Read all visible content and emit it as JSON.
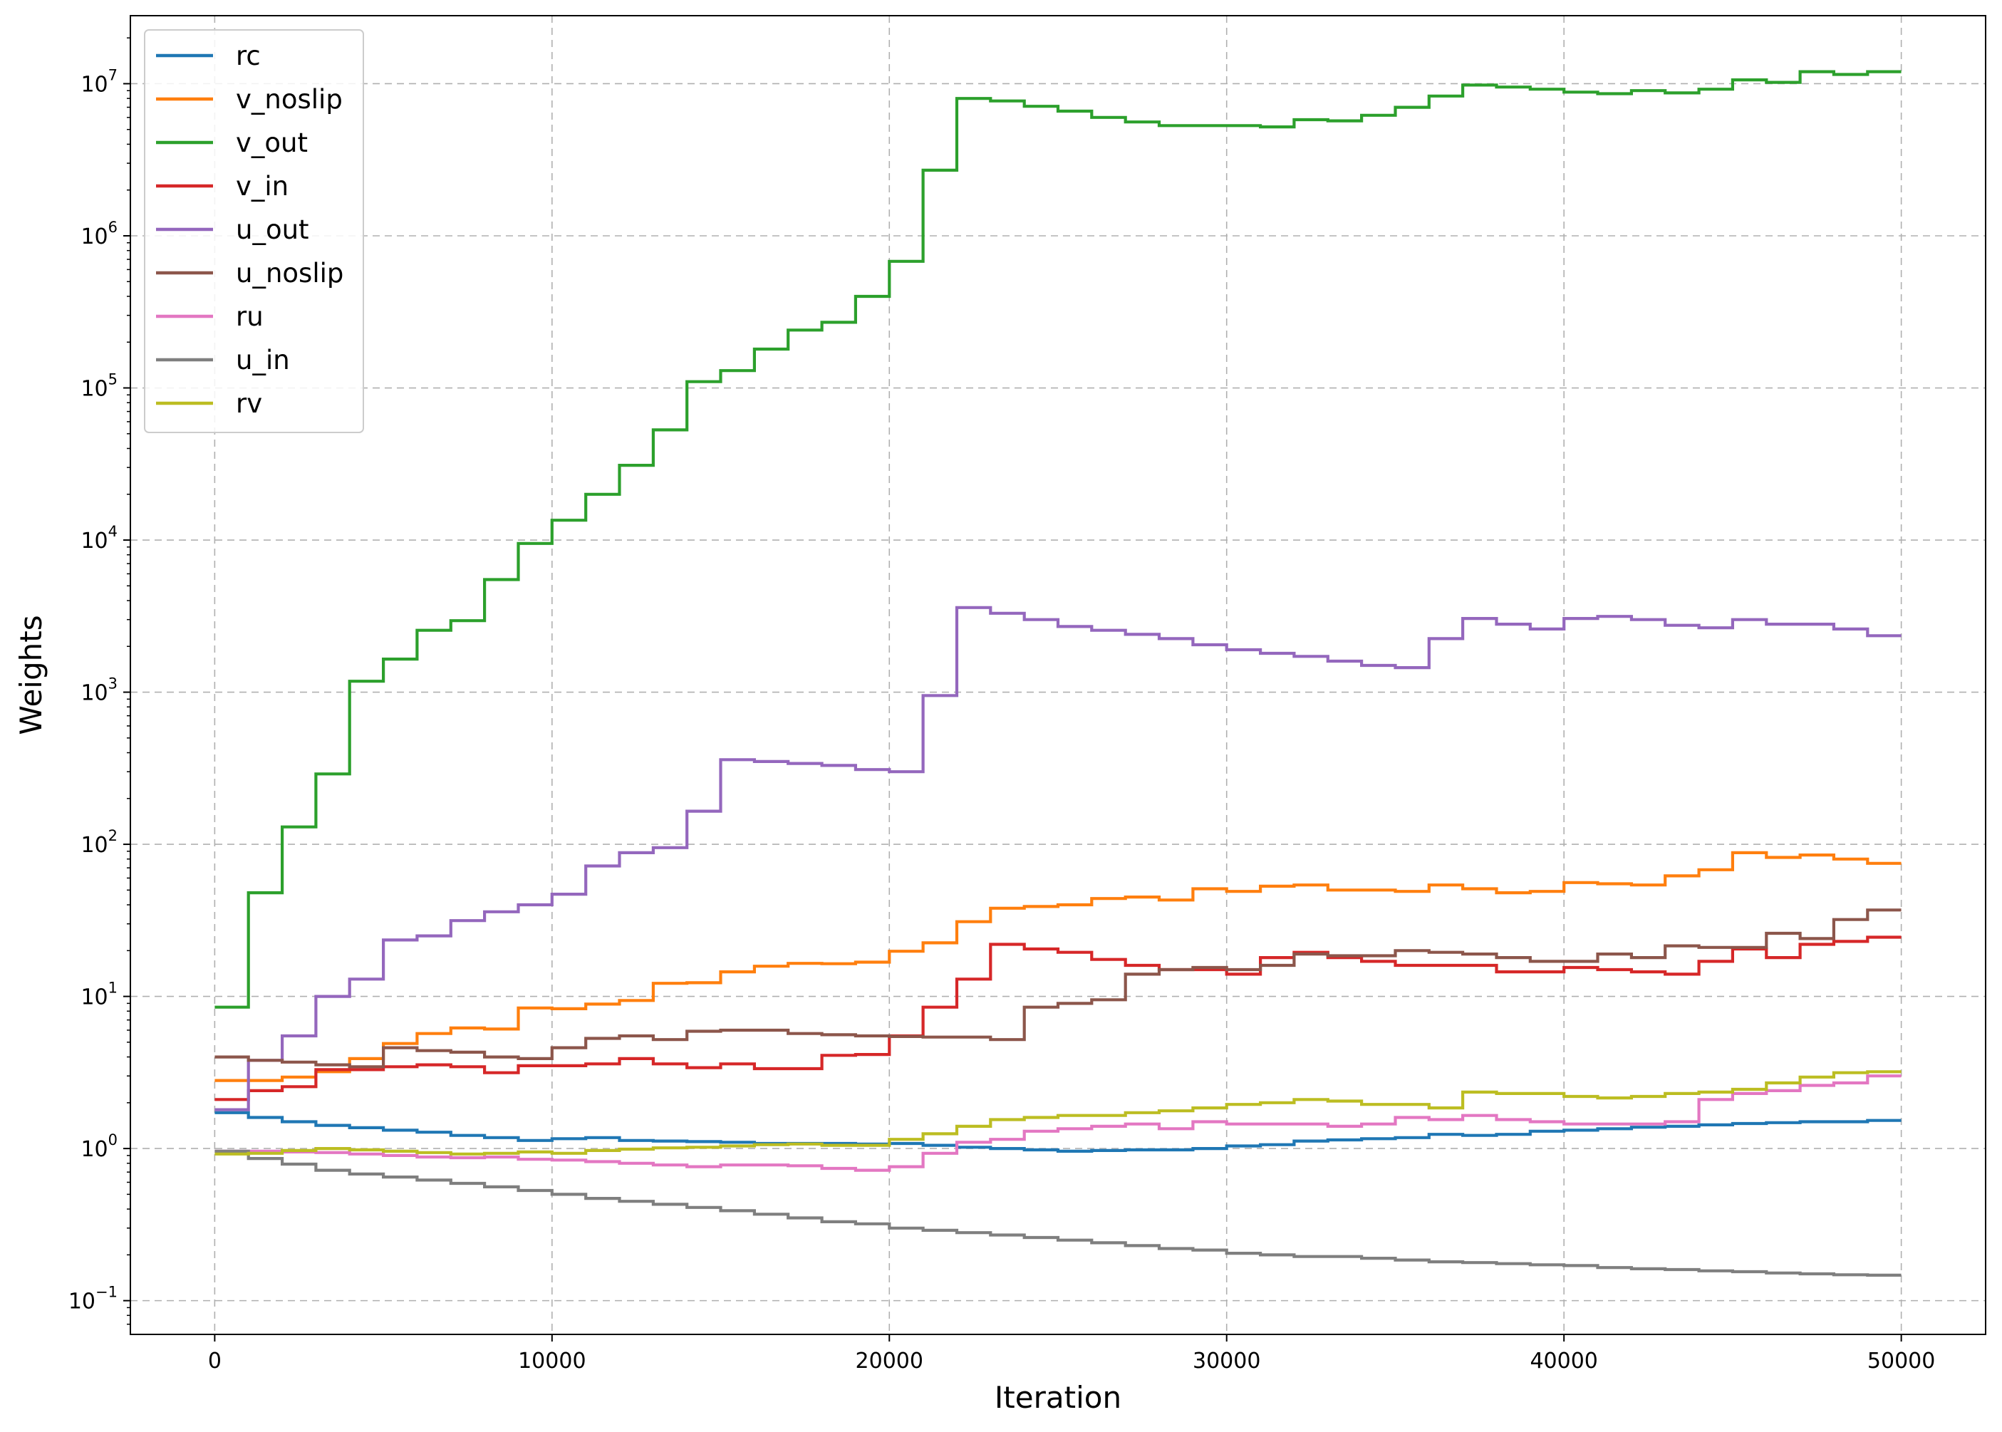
{
  "chart_data": {
    "type": "line",
    "xlabel": "Iteration",
    "ylabel": "Weights",
    "yscale": "log",
    "xlim": [
      -2500,
      52500
    ],
    "ylim": [
      0.06,
      28000000
    ],
    "xticks": [
      {
        "value": 0,
        "label": "0"
      },
      {
        "value": 10000,
        "label": "10000"
      },
      {
        "value": 20000,
        "label": "20000"
      },
      {
        "value": 30000,
        "label": "30000"
      },
      {
        "value": 40000,
        "label": "40000"
      },
      {
        "value": 50000,
        "label": "50000"
      }
    ],
    "yticks": [
      {
        "value": 0.1,
        "base": "10",
        "exp": "−1"
      },
      {
        "value": 1,
        "base": "10",
        "exp": "0"
      },
      {
        "value": 10,
        "base": "10",
        "exp": "1"
      },
      {
        "value": 100,
        "base": "10",
        "exp": "2"
      },
      {
        "value": 1000,
        "base": "10",
        "exp": "3"
      },
      {
        "value": 10000,
        "base": "10",
        "exp": "4"
      },
      {
        "value": 100000,
        "base": "10",
        "exp": "5"
      },
      {
        "value": 1000000,
        "base": "10",
        "exp": "6"
      },
      {
        "value": 10000000,
        "base": "10",
        "exp": "7"
      }
    ],
    "grid": true,
    "legend_position": "upper-left",
    "step_x": [
      0,
      1000,
      2000,
      3000,
      4000,
      5000,
      6000,
      7000,
      8000,
      9000,
      10000,
      11000,
      12000,
      13000,
      14000,
      15000,
      16000,
      17000,
      18000,
      19000,
      20000,
      21000,
      22000,
      23000,
      24000,
      25000,
      26000,
      27000,
      28000,
      29000,
      30000,
      31000,
      32000,
      33000,
      34000,
      35000,
      36000,
      37000,
      38000,
      39000,
      40000,
      41000,
      42000,
      43000,
      44000,
      45000,
      46000,
      47000,
      48000,
      49000,
      50000
    ],
    "series": [
      {
        "name": "rc",
        "color": "#1f77b4",
        "values": [
          1.72,
          1.6,
          1.5,
          1.42,
          1.37,
          1.32,
          1.28,
          1.22,
          1.18,
          1.13,
          1.16,
          1.18,
          1.13,
          1.12,
          1.11,
          1.1,
          1.08,
          1.08,
          1.08,
          1.07,
          1.08,
          1.05,
          1.02,
          1.0,
          0.98,
          0.96,
          0.97,
          0.98,
          0.98,
          1.0,
          1.04,
          1.06,
          1.12,
          1.14,
          1.16,
          1.18,
          1.24,
          1.22,
          1.24,
          1.3,
          1.32,
          1.35,
          1.38,
          1.4,
          1.43,
          1.46,
          1.48,
          1.5,
          1.5,
          1.53,
          1.53
        ]
      },
      {
        "name": "v_noslip",
        "color": "#ff7f0e",
        "values": [
          2.8,
          2.8,
          2.95,
          3.2,
          3.9,
          4.9,
          5.7,
          6.2,
          6.1,
          8.4,
          8.3,
          8.9,
          9.4,
          12.2,
          12.3,
          14.5,
          15.8,
          16.5,
          16.4,
          16.8,
          19.8,
          22.5,
          31,
          38,
          39,
          40,
          44,
          45,
          43,
          51,
          49,
          53,
          54,
          50,
          50,
          49,
          54,
          51,
          48,
          49,
          56,
          55,
          54,
          62,
          68,
          88,
          82,
          85,
          80,
          75,
          75
        ]
      },
      {
        "name": "v_out",
        "color": "#2ca02c",
        "values": [
          8.5,
          48,
          130,
          290,
          1180,
          1650,
          2550,
          2950,
          5500,
          9500,
          13500,
          20000,
          31000,
          53000,
          110000,
          130000,
          180000,
          240000,
          270000,
          400000,
          680000,
          2700000,
          8000000,
          7700000,
          7100000,
          6600000,
          6000000,
          5600000,
          5300000,
          5300000,
          5300000,
          5200000,
          5800000,
          5700000,
          6200000,
          7000000,
          8300000,
          9800000,
          9500000,
          9200000,
          8800000,
          8600000,
          9000000,
          8700000,
          9200000,
          10600000,
          10200000,
          12000000,
          11500000,
          12000000,
          12000000
        ]
      },
      {
        "name": "v_in",
        "color": "#d62728",
        "values": [
          2.1,
          2.4,
          2.55,
          3.3,
          3.3,
          3.45,
          3.55,
          3.45,
          3.15,
          3.5,
          3.5,
          3.6,
          3.9,
          3.6,
          3.4,
          3.6,
          3.35,
          3.35,
          4.1,
          4.15,
          5.5,
          8.5,
          13,
          22,
          20.5,
          19.5,
          17.5,
          16,
          15,
          15,
          14,
          18,
          19.5,
          18,
          17,
          16,
          16,
          16,
          14.5,
          14.5,
          15.5,
          15,
          14.5,
          14,
          17,
          20.5,
          18,
          22,
          23,
          24.5,
          24.5
        ]
      },
      {
        "name": "u_out",
        "color": "#9467bd",
        "values": [
          1.8,
          3.8,
          5.5,
          10,
          13,
          23.5,
          25,
          31.5,
          36,
          40,
          47,
          72,
          88,
          95,
          165,
          360,
          350,
          340,
          330,
          310,
          300,
          950,
          3600,
          3300,
          3000,
          2700,
          2550,
          2400,
          2250,
          2050,
          1900,
          1800,
          1720,
          1600,
          1500,
          1450,
          2250,
          3050,
          2800,
          2600,
          3050,
          3150,
          3000,
          2750,
          2650,
          3000,
          2800,
          2800,
          2600,
          2350,
          2350
        ]
      },
      {
        "name": "u_noslip",
        "color": "#8c564b",
        "values": [
          4.0,
          3.8,
          3.7,
          3.55,
          3.45,
          4.6,
          4.4,
          4.3,
          4.0,
          3.9,
          4.6,
          5.3,
          5.5,
          5.2,
          5.9,
          6.0,
          6.0,
          5.7,
          5.6,
          5.5,
          5.45,
          5.4,
          5.4,
          5.2,
          8.5,
          9.0,
          9.5,
          14,
          15,
          15.5,
          15,
          16,
          19,
          18.5,
          18.5,
          20,
          19.5,
          19,
          18,
          17,
          17,
          19,
          18,
          21.5,
          21,
          21,
          26,
          24,
          32,
          37,
          37
        ]
      },
      {
        "name": "ru",
        "color": "#e377c2",
        "values": [
          0.96,
          0.96,
          0.95,
          0.94,
          0.92,
          0.9,
          0.88,
          0.87,
          0.88,
          0.85,
          0.84,
          0.82,
          0.8,
          0.78,
          0.76,
          0.78,
          0.78,
          0.77,
          0.74,
          0.72,
          0.76,
          0.93,
          1.1,
          1.15,
          1.3,
          1.35,
          1.4,
          1.45,
          1.35,
          1.5,
          1.45,
          1.45,
          1.45,
          1.4,
          1.45,
          1.6,
          1.55,
          1.65,
          1.55,
          1.5,
          1.45,
          1.45,
          1.45,
          1.5,
          2.1,
          2.3,
          2.4,
          2.6,
          2.7,
          3.0,
          3.0
        ]
      },
      {
        "name": "u_in",
        "color": "#7f7f7f",
        "values": [
          0.96,
          0.86,
          0.79,
          0.72,
          0.68,
          0.65,
          0.62,
          0.59,
          0.56,
          0.53,
          0.5,
          0.47,
          0.45,
          0.43,
          0.41,
          0.39,
          0.37,
          0.35,
          0.33,
          0.32,
          0.3,
          0.29,
          0.28,
          0.27,
          0.26,
          0.25,
          0.24,
          0.23,
          0.22,
          0.215,
          0.205,
          0.2,
          0.195,
          0.195,
          0.19,
          0.185,
          0.18,
          0.178,
          0.175,
          0.172,
          0.17,
          0.165,
          0.162,
          0.16,
          0.157,
          0.155,
          0.152,
          0.15,
          0.148,
          0.147,
          0.147
        ]
      },
      {
        "name": "rv",
        "color": "#bcbd22",
        "values": [
          0.92,
          0.93,
          0.97,
          1.0,
          0.98,
          0.96,
          0.94,
          0.92,
          0.93,
          0.95,
          0.93,
          0.97,
          0.99,
          1.01,
          1.02,
          1.04,
          1.06,
          1.07,
          1.05,
          1.05,
          1.15,
          1.25,
          1.4,
          1.55,
          1.6,
          1.65,
          1.65,
          1.72,
          1.77,
          1.85,
          1.95,
          2.0,
          2.1,
          2.05,
          1.95,
          1.95,
          1.85,
          2.35,
          2.3,
          2.3,
          2.2,
          2.15,
          2.2,
          2.3,
          2.35,
          2.45,
          2.7,
          2.95,
          3.15,
          3.2,
          3.2
        ]
      }
    ]
  }
}
